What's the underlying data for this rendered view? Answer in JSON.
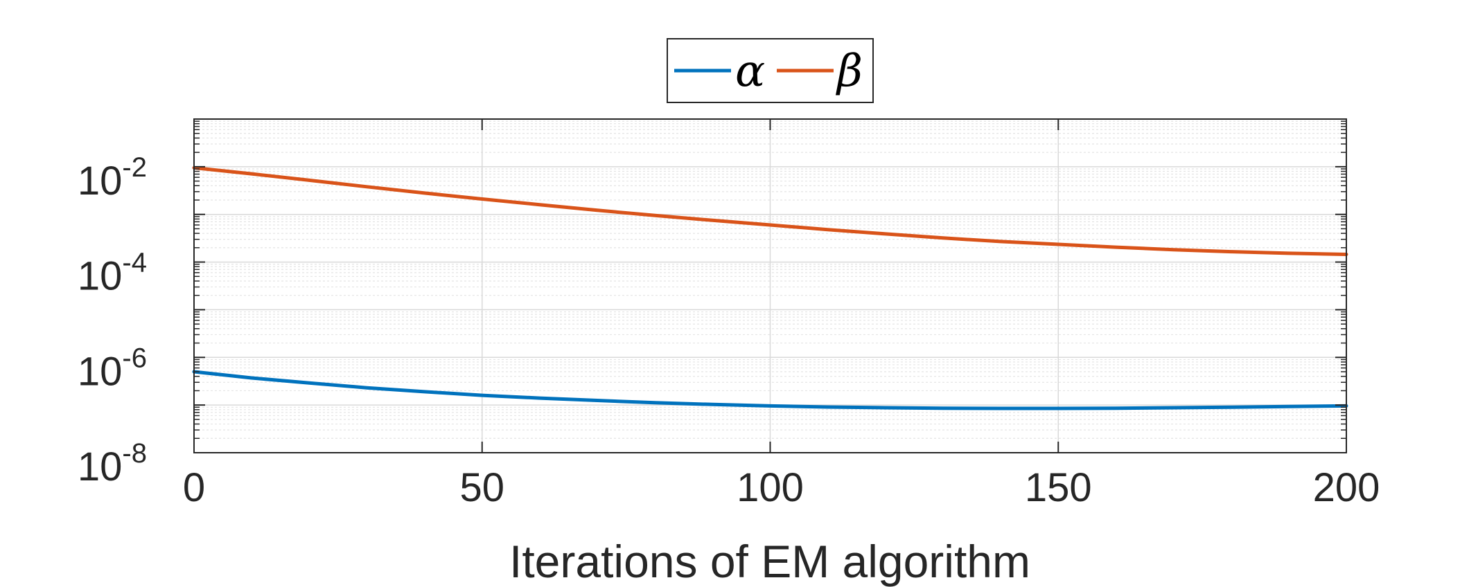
{
  "chart_data": {
    "type": "line",
    "title": "",
    "xlabel": "Iterations of EM algorithm",
    "ylabel": "",
    "xlim": [
      0,
      200
    ],
    "ylim": [
      1e-08,
      0.1
    ],
    "yscale": "log",
    "grid": true,
    "minor_grid": true,
    "legend_position": "top-center",
    "x_ticks": [
      0,
      50,
      100,
      150,
      200
    ],
    "x_tick_labels": [
      "0",
      "50",
      "100",
      "150",
      "200"
    ],
    "y_ticks": [
      {
        "value": 0.01,
        "base": "10",
        "exp": "-2"
      },
      {
        "value": 0.0001,
        "base": "10",
        "exp": "-4"
      },
      {
        "value": 1e-06,
        "base": "10",
        "exp": "-6"
      },
      {
        "value": 1e-08,
        "base": "10",
        "exp": "-8"
      }
    ],
    "series": [
      {
        "name": "α",
        "color": "#0072BD",
        "x": [
          0,
          10,
          20,
          30,
          40,
          50,
          60,
          70,
          80,
          90,
          100,
          110,
          120,
          130,
          140,
          150,
          160,
          170,
          180,
          190,
          200
        ],
        "values": [
          5e-07,
          3.7e-07,
          2.9e-07,
          2.3e-07,
          1.9e-07,
          1.6e-07,
          1.4e-07,
          1.25e-07,
          1.12e-07,
          1.03e-07,
          9.6e-08,
          9.1e-08,
          8.8e-08,
          8.6e-08,
          8.5e-08,
          8.5e-08,
          8.6e-08,
          8.8e-08,
          9e-08,
          9.3e-08,
          9.6e-08
        ]
      },
      {
        "name": "β",
        "color": "#D95319",
        "x": [
          0,
          10,
          20,
          30,
          40,
          50,
          60,
          70,
          80,
          90,
          100,
          110,
          120,
          130,
          140,
          150,
          160,
          170,
          180,
          190,
          200
        ],
        "values": [
          0.0095,
          0.0071,
          0.0052,
          0.0038,
          0.0028,
          0.0021,
          0.0016,
          0.00122,
          0.00095,
          0.00075,
          0.0006,
          0.00048,
          0.00039,
          0.00032,
          0.00027,
          0.000235,
          0.000205,
          0.000182,
          0.000165,
          0.000153,
          0.000145
        ]
      }
    ]
  }
}
